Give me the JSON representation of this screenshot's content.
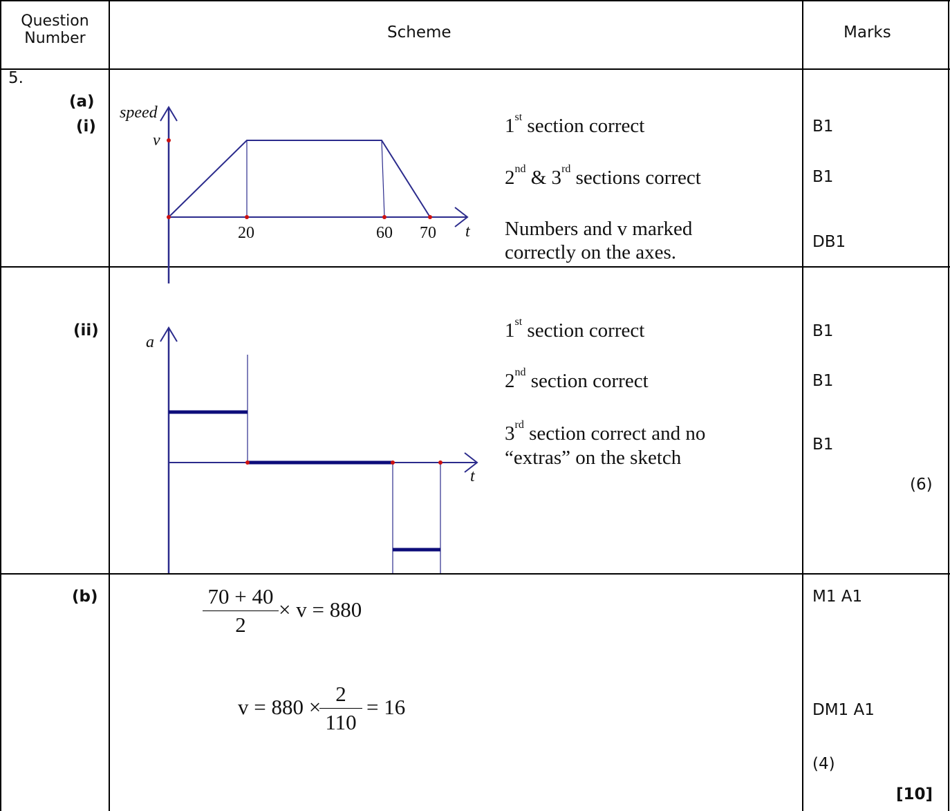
{
  "header": {
    "question_number": "Question\nNumber",
    "scheme": "Scheme",
    "marks": "Marks"
  },
  "question": {
    "number": "5.",
    "part_a": "(a)",
    "part_a_i": "(i)",
    "part_a_ii": "(ii)",
    "part_b": "(b)"
  },
  "graph_speed": {
    "y_label": "speed",
    "v_label": "v",
    "x_label": "t",
    "ticks": [
      "20",
      "60",
      "70"
    ],
    "chart_data": {
      "type": "line",
      "x": [
        0,
        20,
        60,
        70
      ],
      "y": [
        "0",
        "v",
        "v",
        "0"
      ],
      "xlabel": "t",
      "ylabel": "speed"
    }
  },
  "graph_accel": {
    "y_label": "a",
    "x_label": "t",
    "chart_data": {
      "type": "line",
      "segments": [
        {
          "from": 0,
          "to": 20,
          "level": "positive"
        },
        {
          "from": 20,
          "to": 60,
          "level": "zero"
        },
        {
          "from": 60,
          "to": 70,
          "level": "negative"
        }
      ],
      "xlabel": "t",
      "ylabel": "a"
    }
  },
  "criteria_a_i": [
    {
      "pre": "1",
      "sup": "st",
      "post": " section correct",
      "mark": "B1"
    },
    {
      "pre": "2",
      "sup": "nd",
      "mid": " & 3",
      "sup2": "rd",
      "post": " sections correct",
      "mark": "B1"
    },
    {
      "line1": "Numbers and v marked",
      "line2": "correctly on the axes.",
      "mark": "DB1"
    }
  ],
  "criteria_a_ii": [
    {
      "pre": "1",
      "sup": "st",
      "post": " section correct",
      "mark": "B1"
    },
    {
      "pre": "2",
      "sup": "nd",
      "post": " section correct",
      "mark": "B1"
    },
    {
      "pre": "3",
      "sup": "rd",
      "post": " section correct and no",
      "line2": "“extras” on the sketch",
      "mark": "B1"
    }
  ],
  "subtotal_a": "(6)",
  "part_b_working": {
    "eq1_num": "70 + 40",
    "eq1_den": "2",
    "eq1_rest": "× v = 880",
    "eq2_lhs": "v = 880 ×",
    "eq2_num": "2",
    "eq2_den": "110",
    "eq2_rest": "= 16",
    "mark1": "M1 A1",
    "mark2": "DM1 A1"
  },
  "subtotal_b": "(4)",
  "total": "[10]",
  "colors": {
    "axis": "#2b2b8c",
    "point": "#cc1111",
    "bold_line": "#0d0d7a"
  }
}
